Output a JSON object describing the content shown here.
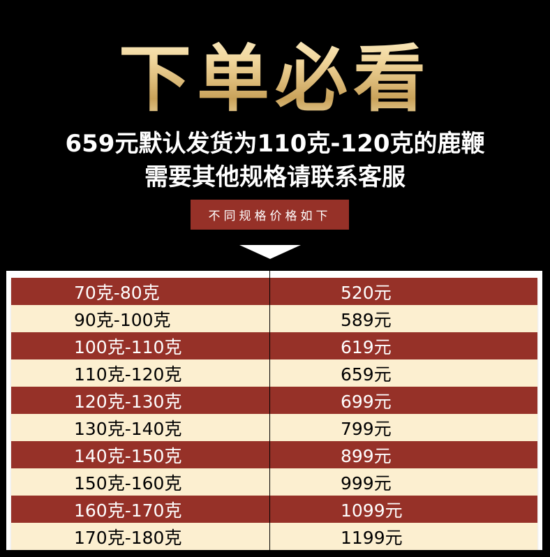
{
  "header": {
    "title": "下单必看",
    "line1": "659元默认发货为110克-120克的鹿鞭",
    "line2": "需要其他规格请联系客服",
    "badge": "不同规格价格如下"
  },
  "colors": {
    "row_dark": "#963128",
    "row_light": "#fcefd0",
    "title_gold": "#e8c883"
  },
  "table": {
    "rows": [
      {
        "spec": "70克-80克",
        "price": "520元"
      },
      {
        "spec": "90克-100克",
        "price": "589元"
      },
      {
        "spec": "100克-110克",
        "price": "619元"
      },
      {
        "spec": "110克-120克",
        "price": "659元"
      },
      {
        "spec": "120克-130克",
        "price": "699元"
      },
      {
        "spec": "130克-140克",
        "price": "799元"
      },
      {
        "spec": "140克-150克",
        "price": "899元"
      },
      {
        "spec": "150克-160克",
        "price": "999元"
      },
      {
        "spec": "160克-170克",
        "price": "1099元"
      },
      {
        "spec": "170克-180克",
        "price": "1199元"
      }
    ]
  }
}
